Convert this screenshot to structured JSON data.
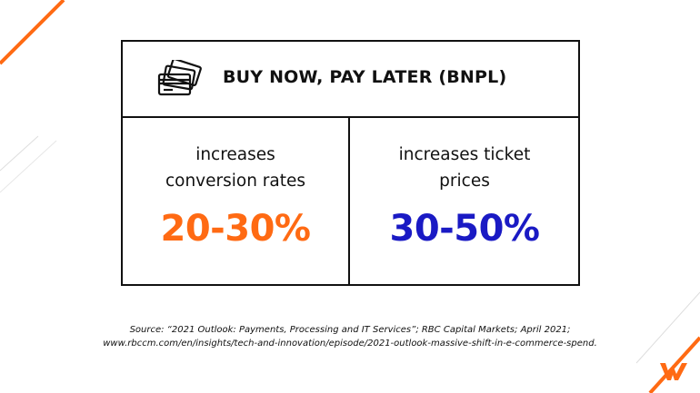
{
  "header": {
    "title": "BUY NOW, PAY LATER (BNPL)",
    "icon": "credit-cards-icon"
  },
  "stats": [
    {
      "label_line1": "increases",
      "label_line2": "conversion rates",
      "value": "20-30%",
      "color": "#ff6a13"
    },
    {
      "label_line1": "increases ticket",
      "label_line2": "prices",
      "value": "30-50%",
      "color": "#1a1ac4"
    }
  ],
  "source": {
    "line1": "Source: “2021 Outlook: Payments, Processing and IT Services”; RBC Capital Markets; April 2021;",
    "line2": "www.rbccm.com/en/insights/tech-and-innovation/episode/2021-outlook-massive-shift-in-e-commerce-spend."
  },
  "brand": {
    "accent": "#ff6a13",
    "logo_icon": "w-logo-icon"
  }
}
